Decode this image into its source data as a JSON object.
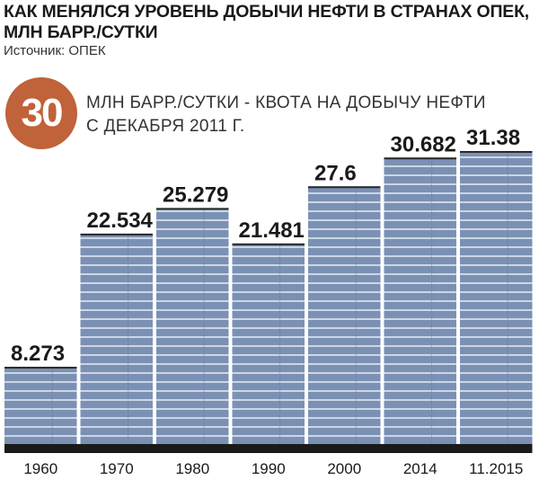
{
  "header": {
    "title": "КАК МЕНЯЛСЯ УРОВЕНЬ ДОБЫЧИ НЕФТИ В СТРАНАХ ОПЕК, МЛН БАРР./СУТКИ",
    "source": "Источник: ОПЕК"
  },
  "quota": {
    "value": "30",
    "text": "МЛН БАРР./СУТКИ - КВОТА НА ДОБЫЧУ НЕФТИ\nС ДЕКАБРЯ 2011 Г.",
    "circle_color": "#c0623a"
  },
  "colors": {
    "bar_fill": "#7b91b4",
    "bar_line": "#e8edf5",
    "bar_base": "#1a1a1a"
  },
  "chart_data": {
    "type": "bar",
    "title": "КАК МЕНЯЛСЯ УРОВЕНЬ ДОБЫЧИ НЕФТИ В СТРАНАХ ОПЕК, МЛН БАРР./СУТКИ",
    "categories": [
      "1960",
      "1970",
      "1980",
      "1990",
      "2000",
      "2014",
      "11.2015"
    ],
    "values": [
      8.273,
      22.534,
      25.279,
      21.481,
      27.6,
      30.682,
      31.38
    ],
    "value_labels": [
      "8.273",
      "22.534",
      "25.279",
      "21.481",
      "27.6",
      "30.682",
      "31.38"
    ],
    "xlabel": "",
    "ylabel": "",
    "ylim": [
      0,
      31.38
    ],
    "grid": false,
    "legend": "none"
  }
}
